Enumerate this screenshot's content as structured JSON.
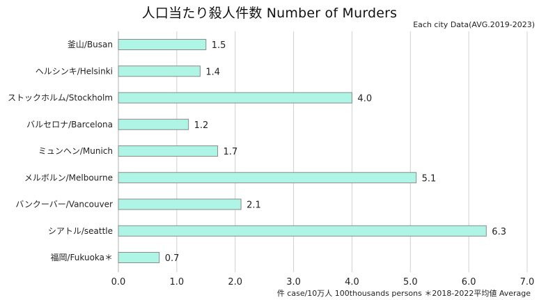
{
  "chart_data": {
    "type": "bar",
    "orientation": "horizontal",
    "title": "人口当たり殺人件数 Number of Murders",
    "subtitle": "Each city Data(AVG.2019-2023)",
    "xlabel": "件 case/10万人 100thousands persons ＊2018-2022平均値 Average",
    "ylabel": "",
    "categories": [
      "釜山/Busan",
      "ヘルシンキ/Helsinki",
      "ストックホルム/Stockholm",
      "バルセロナ/Barcelona",
      "ミュンヘン/Munich",
      "メルボルン/Melbourne",
      "バンクーバー/Vancouver",
      "シアトル/seattle",
      "福岡/Fukuoka＊"
    ],
    "values": [
      1.5,
      1.4,
      4.0,
      1.2,
      1.7,
      5.1,
      2.1,
      6.3,
      0.7
    ],
    "value_labels": [
      "1.5",
      "1.4",
      "4.0",
      "1.2",
      "1.7",
      "5.1",
      "2.1",
      "6.3",
      "0.7"
    ],
    "xlim": [
      0,
      7
    ],
    "xticks": [
      "0.0",
      "1.0",
      "2.0",
      "3.0",
      "4.0",
      "5.0",
      "6.0",
      "7.0"
    ],
    "grid": true,
    "legend": "none"
  },
  "colors": {
    "bar_fill": "#aef5e6",
    "bar_stroke": "#8a8a8a",
    "grid": "#d0d0d0",
    "axis": "#b0b0b0"
  }
}
